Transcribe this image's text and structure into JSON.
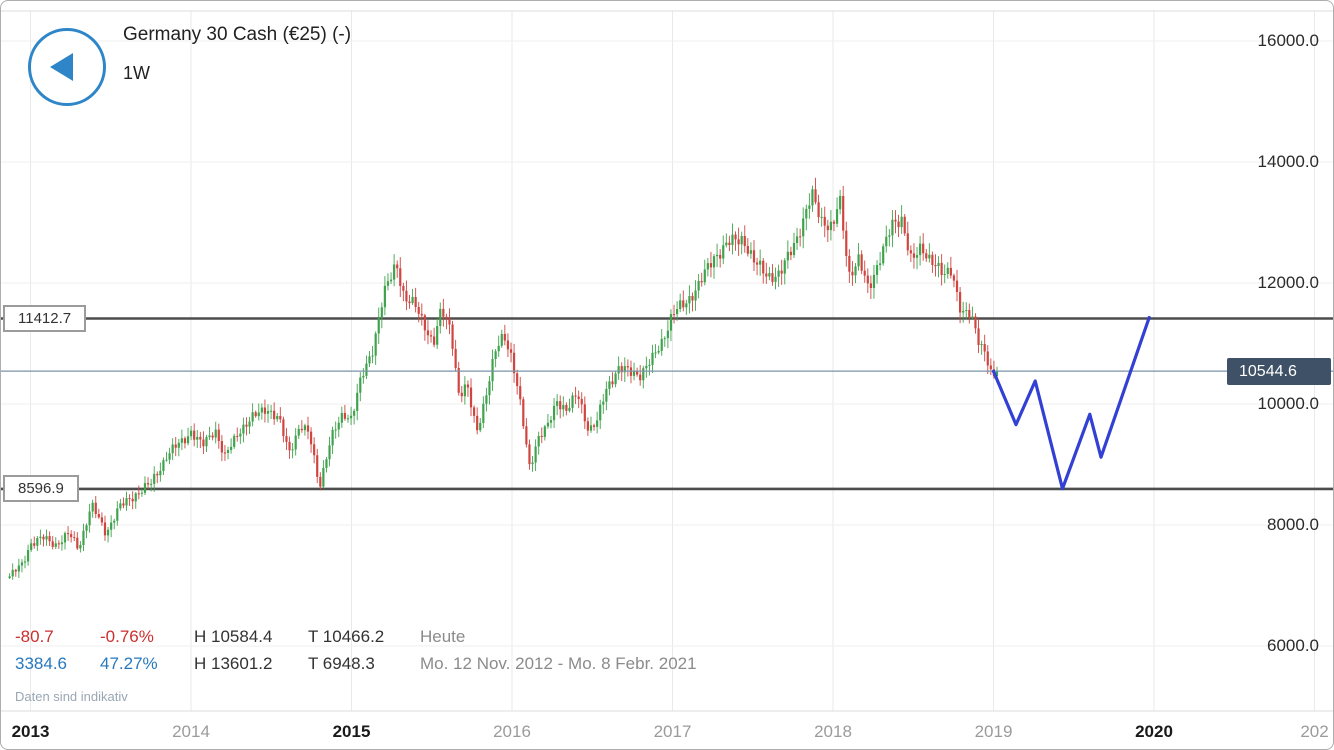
{
  "header": {
    "title": "Germany 30 Cash (€25) (-)",
    "timeframe": "1W"
  },
  "stats": {
    "row1": {
      "change": "-80.7",
      "change_pct": "-0.76%",
      "high": "H 10584.4",
      "low": "T 10466.2",
      "period": "Heute"
    },
    "row2": {
      "change": "3384.6",
      "change_pct": "47.27%",
      "high": "H 13601.2",
      "low": "T 6948.3",
      "period": "Mo. 12 Nov. 2012 - Mo. 8 Febr. 2021"
    },
    "disclaimer": "Daten sind indikativ"
  },
  "colors": {
    "up": "#3fa34d",
    "down": "#cf4540",
    "level_line": "#4d4d4d",
    "current_line": "#7a93a8",
    "current_bg": "#3f5166",
    "drawing": "#3340d4",
    "accent_blue": "#2e86c8",
    "grid": "#e9e9e9",
    "grid_h": "#efefef",
    "border_line": "#dcdcdc"
  },
  "chart_data": {
    "type": "candlestick",
    "instrument": "Germany 30 Cash",
    "interval": "1W",
    "visible_date_range": "Mo. 12 Nov. 2012 - Mo. 8 Febr. 2021",
    "current_price": {
      "price": 10544.6,
      "label": "10544.6"
    },
    "levels": [
      {
        "price": 11412.7,
        "label": "11412.7"
      },
      {
        "price": 8596.9,
        "label": "8596.9"
      }
    ],
    "y_axis": {
      "ticks": [
        {
          "label": "16000.0",
          "value": 16000
        },
        {
          "label": "14000.0",
          "value": 14000
        },
        {
          "label": "12000.0",
          "value": 12000
        },
        {
          "label": "10000.0",
          "value": 10000
        },
        {
          "label": "8000.0",
          "value": 8000
        },
        {
          "label": "6000.0",
          "value": 6000
        }
      ]
    },
    "x_axis": {
      "ticks": [
        {
          "label": "2013",
          "t": 2013,
          "strong": true
        },
        {
          "label": "2014",
          "t": 2014,
          "strong": false
        },
        {
          "label": "2015",
          "t": 2015,
          "strong": true
        },
        {
          "label": "2016",
          "t": 2016,
          "strong": false
        },
        {
          "label": "2017",
          "t": 2017,
          "strong": false
        },
        {
          "label": "2018",
          "t": 2018,
          "strong": false
        },
        {
          "label": "2019",
          "t": 2019,
          "strong": false
        },
        {
          "label": "2020",
          "t": 2020,
          "strong": true
        },
        {
          "label": "202",
          "t": 2021,
          "strong": false
        }
      ]
    },
    "price_path": [
      [
        2012.87,
        7150
      ],
      [
        2012.95,
        7350
      ],
      [
        2013.0,
        7700
      ],
      [
        2013.08,
        7780
      ],
      [
        2013.16,
        7680
      ],
      [
        2013.24,
        7850
      ],
      [
        2013.3,
        7620
      ],
      [
        2013.38,
        8330
      ],
      [
        2013.47,
        7870
      ],
      [
        2013.55,
        8280
      ],
      [
        2013.65,
        8500
      ],
      [
        2013.75,
        8680
      ],
      [
        2013.85,
        9150
      ],
      [
        2013.95,
        9400
      ],
      [
        2014.0,
        9550
      ],
      [
        2014.07,
        9300
      ],
      [
        2014.15,
        9600
      ],
      [
        2014.21,
        9100
      ],
      [
        2014.3,
        9570
      ],
      [
        2014.4,
        9800
      ],
      [
        2014.47,
        9950
      ],
      [
        2014.55,
        9720
      ],
      [
        2014.61,
        9200
      ],
      [
        2014.68,
        9650
      ],
      [
        2014.74,
        9470
      ],
      [
        2014.8,
        8650
      ],
      [
        2014.87,
        9400
      ],
      [
        2014.95,
        9860
      ],
      [
        2015.0,
        9770
      ],
      [
        2015.06,
        10400
      ],
      [
        2015.13,
        10900
      ],
      [
        2015.2,
        11800
      ],
      [
        2015.24,
        12050
      ],
      [
        2015.28,
        12350
      ],
      [
        2015.33,
        11750
      ],
      [
        2015.4,
        11600
      ],
      [
        2015.46,
        11300
      ],
      [
        2015.51,
        10980
      ],
      [
        2015.56,
        11540
      ],
      [
        2015.62,
        11250
      ],
      [
        2015.67,
        10120
      ],
      [
        2015.72,
        10280
      ],
      [
        2015.78,
        9570
      ],
      [
        2015.84,
        10150
      ],
      [
        2015.9,
        10890
      ],
      [
        2015.95,
        11190
      ],
      [
        2016.0,
        10740
      ],
      [
        2016.06,
        9850
      ],
      [
        2016.11,
        8970
      ],
      [
        2016.16,
        9420
      ],
      [
        2016.22,
        9600
      ],
      [
        2016.28,
        10080
      ],
      [
        2016.34,
        9880
      ],
      [
        2016.41,
        10170
      ],
      [
        2016.48,
        9560
      ],
      [
        2016.53,
        9700
      ],
      [
        2016.59,
        10280
      ],
      [
        2016.66,
        10580
      ],
      [
        2016.73,
        10530
      ],
      [
        2016.8,
        10500
      ],
      [
        2016.87,
        10710
      ],
      [
        2016.93,
        11020
      ],
      [
        2017.0,
        11480
      ],
      [
        2017.08,
        11670
      ],
      [
        2017.17,
        11990
      ],
      [
        2017.26,
        12440
      ],
      [
        2017.34,
        12640
      ],
      [
        2017.44,
        12750
      ],
      [
        2017.51,
        12330
      ],
      [
        2017.59,
        12140
      ],
      [
        2017.67,
        12120
      ],
      [
        2017.74,
        12560
      ],
      [
        2017.81,
        12990
      ],
      [
        2017.87,
        13440
      ],
      [
        2017.93,
        13060
      ],
      [
        2018.0,
        12890
      ],
      [
        2018.04,
        13400
      ],
      [
        2018.1,
        12150
      ],
      [
        2018.16,
        12380
      ],
      [
        2018.22,
        11880
      ],
      [
        2018.29,
        12420
      ],
      [
        2018.37,
        12940
      ],
      [
        2018.43,
        13080
      ],
      [
        2018.49,
        12340
      ],
      [
        2018.55,
        12560
      ],
      [
        2018.62,
        12390
      ],
      [
        2018.69,
        12090
      ],
      [
        2018.74,
        12230
      ],
      [
        2018.8,
        11520
      ],
      [
        2018.86,
        11430
      ],
      [
        2018.91,
        11050
      ],
      [
        2018.95,
        10880
      ],
      [
        2018.99,
        10420
      ],
      [
        2019.03,
        10544.6
      ]
    ],
    "drawing": {
      "type": "trend-sketch",
      "points": [
        [
          2019.0,
          10540
        ],
        [
          2019.14,
          9660
        ],
        [
          2019.26,
          10380
        ],
        [
          2019.43,
          8600
        ],
        [
          2019.6,
          9830
        ],
        [
          2019.67,
          9120
        ],
        [
          2019.97,
          11430
        ]
      ]
    }
  }
}
